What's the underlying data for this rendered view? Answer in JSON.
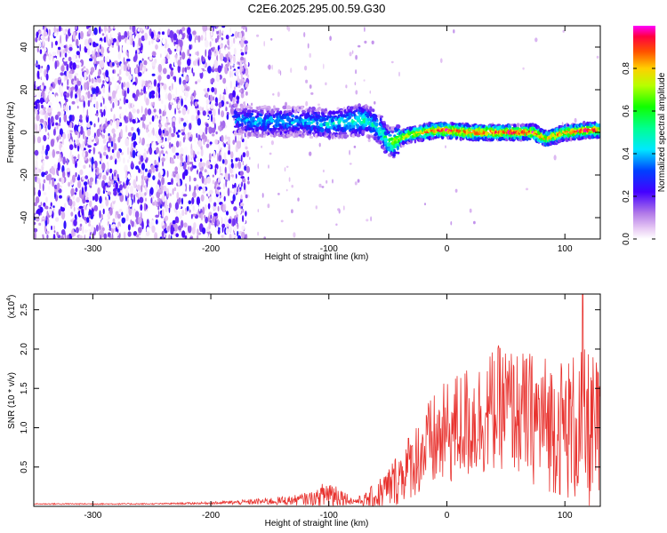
{
  "title": "C2E6.2025.295.00.59.G30",
  "chart_data": [
    {
      "type": "heatmap",
      "name": "spectrogram",
      "xlabel": "Height of straight line (km)",
      "ylabel": "Frequency (Hz)",
      "xlim": [
        -350,
        130
      ],
      "ylim": [
        -50,
        50
      ],
      "x_ticks": [
        -300,
        -200,
        -100,
        0,
        100
      ],
      "x_tick_labels": [
        "-300",
        "-200",
        "-100",
        "0",
        "100"
      ],
      "y_ticks": [
        -40,
        -20,
        0,
        20,
        40
      ],
      "y_tick_labels": [
        "-40",
        "-20",
        "0",
        "20",
        "40"
      ],
      "colorbar": {
        "label": "Normalized spectral amplitude",
        "range": [
          0,
          1
        ],
        "ticks": [
          0.0,
          0.2,
          0.4,
          0.6,
          0.8
        ],
        "tick_labels": [
          "0.0",
          "0.2",
          "0.4",
          "0.6",
          "0.8"
        ]
      },
      "signal_track": {
        "x": [
          -180,
          -160,
          -140,
          -120,
          -100,
          -80,
          -70,
          -60,
          -55,
          -50,
          -45,
          -40,
          -30,
          -20,
          -10,
          0,
          20,
          40,
          60,
          75,
          80,
          85,
          100,
          120,
          130
        ],
        "freq": [
          6,
          5,
          5,
          5,
          4,
          5,
          6,
          3,
          0,
          -4,
          -5,
          -3,
          -1,
          0,
          1,
          1,
          0,
          0,
          0,
          0,
          -2,
          -3,
          0,
          1,
          1
        ],
        "amplitude": [
          0.35,
          0.4,
          0.4,
          0.4,
          0.45,
          0.5,
          0.55,
          0.45,
          0.5,
          0.55,
          0.7,
          0.75,
          0.8,
          0.85,
          0.9,
          0.95,
          0.95,
          0.95,
          0.95,
          0.95,
          0.9,
          0.85,
          0.9,
          0.95,
          0.9
        ]
      },
      "noise_region_x": [
        -350,
        -180
      ]
    },
    {
      "type": "line",
      "name": "snr",
      "xlabel": "Height of straight line (km)",
      "ylabel": "SNR (10 * v/v)",
      "y_scale_note": "(x10",
      "y_scale_exponent": "4",
      "xlim": [
        -350,
        130
      ],
      "ylim": [
        0,
        2.7
      ],
      "x_ticks": [
        -300,
        -200,
        -100,
        0,
        100
      ],
      "x_tick_labels": [
        "-300",
        "-200",
        "-100",
        "0",
        "100"
      ],
      "y_ticks": [
        0.5,
        1.0,
        1.5,
        2.0,
        2.5
      ],
      "y_tick_labels": [
        "0.5",
        "1.0",
        "1.5",
        "2.0",
        "2.5"
      ],
      "color": "#e8322e",
      "envelope": {
        "x": [
          -350,
          -250,
          -200,
          -170,
          -150,
          -130,
          -110,
          -100,
          -90,
          -80,
          -70,
          -60,
          -50,
          -40,
          -30,
          -20,
          -10,
          0,
          10,
          20,
          30,
          40,
          50,
          60,
          70,
          80,
          90,
          100,
          110,
          120,
          130
        ],
        "base": [
          0.03,
          0.03,
          0.04,
          0.05,
          0.06,
          0.07,
          0.1,
          0.15,
          0.12,
          0.06,
          0.07,
          0.1,
          0.2,
          0.35,
          0.5,
          0.65,
          0.75,
          0.85,
          0.95,
          1.0,
          1.05,
          1.15,
          1.2,
          1.1,
          1.05,
          1.0,
          0.95,
          0.9,
          0.9,
          0.85,
          0.8
        ],
        "amp": [
          0.01,
          0.01,
          0.02,
          0.04,
          0.06,
          0.08,
          0.12,
          0.3,
          0.15,
          0.05,
          0.1,
          0.25,
          0.35,
          0.45,
          0.55,
          0.7,
          0.8,
          0.85,
          0.9,
          0.95,
          0.95,
          1.0,
          1.0,
          1.0,
          1.05,
          1.1,
          1.1,
          1.15,
          1.25,
          1.3,
          1.2
        ]
      },
      "peak": {
        "x": 115,
        "y": 2.7
      }
    }
  ]
}
